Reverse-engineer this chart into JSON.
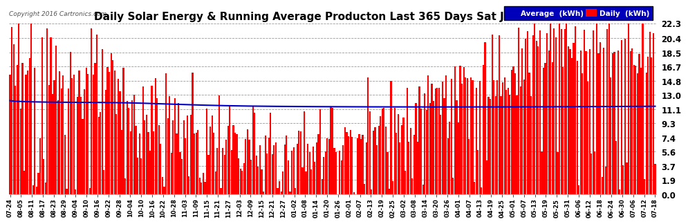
{
  "title": "Daily Solar Energy & Running Average Producton Last 365 Days Sat Jul 23 19:52",
  "copyright": "Copyright 2016 Cartronics.com",
  "legend_avg": "Average  (kWh)",
  "legend_daily": "Daily  (kWh)",
  "yticks": [
    0.0,
    1.9,
    3.7,
    5.6,
    7.4,
    9.3,
    11.1,
    13.0,
    14.8,
    16.7,
    18.5,
    20.4,
    22.3
  ],
  "ymax": 22.3,
  "ymin": 0.0,
  "bar_color": "#ff0000",
  "avg_color": "#0000cc",
  "bg_color": "#ffffff",
  "grid_color": "#999999",
  "title_color": "#000000",
  "title_fontsize": 11,
  "bar_width": 0.85,
  "avg_linewidth": 1.5,
  "xtick_labels": [
    "07-24",
    "08-05",
    "08-11",
    "08-17",
    "08-23",
    "08-29",
    "09-04",
    "09-10",
    "09-16",
    "09-22",
    "09-28",
    "10-04",
    "10-10",
    "10-16",
    "10-22",
    "10-28",
    "11-03",
    "11-09",
    "11-15",
    "11-21",
    "11-27",
    "12-03",
    "12-09",
    "12-15",
    "12-21",
    "12-27",
    "01-02",
    "01-08",
    "01-14",
    "01-20",
    "01-26",
    "02-01",
    "02-07",
    "02-13",
    "02-19",
    "02-25",
    "03-02",
    "03-08",
    "03-14",
    "03-20",
    "03-26",
    "04-01",
    "04-07",
    "04-13",
    "04-19",
    "04-25",
    "05-01",
    "05-07",
    "05-13",
    "05-19",
    "05-25",
    "05-31",
    "06-06",
    "06-12",
    "06-18",
    "06-24",
    "06-30",
    "07-06",
    "07-12",
    "07-18"
  ]
}
